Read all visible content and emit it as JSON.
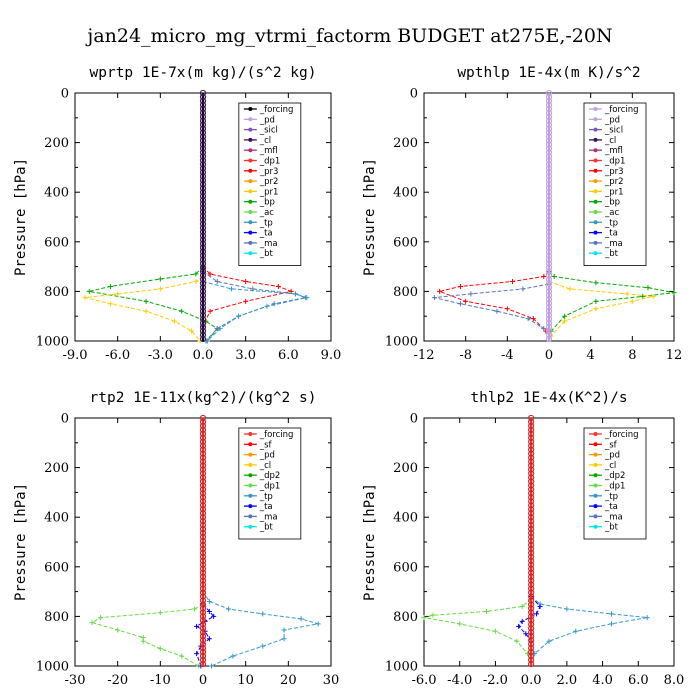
{
  "title": "jan24_micro_mg_vtrmi_factorm  BUDGET at275E,-20N",
  "chart_data": [
    {
      "type": "line",
      "title": "wprtp   1E-7x(m kg)/(s^2 kg)",
      "ylabel": "Pressure [hPa]",
      "xlim": [
        -9,
        9
      ],
      "ylim": [
        1000,
        0
      ],
      "y_inverted": true,
      "xticks": [
        "-9.0",
        "-6.0",
        "-3.0",
        "0.0",
        "3.0",
        "6.0",
        "9.0"
      ],
      "yticks": [
        "0",
        "200",
        "400",
        "600",
        "800",
        "1000"
      ],
      "legend": [
        {
          "name": "_forcing",
          "color": "#000000"
        },
        {
          "name": "_pd",
          "color": "#c0a0e0"
        },
        {
          "name": "_sicl",
          "color": "#7b52c0"
        },
        {
          "name": "_cl",
          "color": "#3a1060"
        },
        {
          "name": "_mfl",
          "color": "#b03070"
        },
        {
          "name": "_dp1",
          "color": "#ff3030"
        },
        {
          "name": "_pr3",
          "color": "#ff0000"
        },
        {
          "name": "_pr2",
          "color": "#ff9900"
        },
        {
          "name": "_pr1",
          "color": "#ffcc00"
        },
        {
          "name": "_bp",
          "color": "#00aa00"
        },
        {
          "name": "_ac",
          "color": "#66dd44"
        },
        {
          "name": "_tp",
          "color": "#3399cc"
        },
        {
          "name": "_ta",
          "color": "#0000ff"
        },
        {
          "name": "_ma",
          "color": "#5577bb"
        },
        {
          "name": "_bt",
          "color": "#00e5ee"
        }
      ],
      "series": [
        {
          "name": "_bp",
          "color": "#00aa00",
          "x": [
            0,
            -0.5,
            -3.0,
            -6.5,
            -8.0,
            -4.0,
            -1.5,
            0.2,
            1.0,
            0.3
          ],
          "y": [
            700,
            730,
            750,
            780,
            800,
            840,
            880,
            920,
            950,
            1000
          ]
        },
        {
          "name": "_pr1",
          "color": "#ffcc00",
          "x": [
            0,
            -0.5,
            -3.0,
            -6.0,
            -8.3,
            -6.5,
            -4.0,
            -2.0,
            -0.8,
            -0.2
          ],
          "y": [
            740,
            760,
            790,
            810,
            825,
            850,
            880,
            920,
            960,
            1000
          ]
        },
        {
          "name": "_pr3",
          "color": "#ff0000",
          "x": [
            0,
            0.5,
            3.0,
            5.3,
            6.2,
            3.0,
            0.5,
            0
          ],
          "y": [
            700,
            730,
            760,
            780,
            800,
            840,
            880,
            940
          ]
        },
        {
          "name": "_ma",
          "color": "#5577bb",
          "x": [
            0,
            1.0,
            3.5,
            6.5,
            7.2,
            5.0,
            2.5,
            1.0,
            0.2
          ],
          "y": [
            720,
            760,
            790,
            810,
            825,
            850,
            900,
            950,
            1000
          ]
        },
        {
          "name": "_tp",
          "color": "#3399cc",
          "x": [
            0,
            2.0,
            6.5,
            7.3,
            4.5,
            2.5,
            1.2,
            0.3
          ],
          "y": [
            760,
            790,
            810,
            825,
            860,
            900,
            950,
            1000
          ]
        },
        {
          "name": "_forcing",
          "color": "#000000",
          "x": [
            0,
            0,
            0
          ],
          "y": [
            0,
            500,
            1000
          ]
        }
      ]
    },
    {
      "type": "line",
      "title": "wpthlp   1E-4x(m K)/s^2",
      "ylabel": "Pressure [hPa]",
      "xlim": [
        -12,
        12
      ],
      "ylim": [
        1000,
        0
      ],
      "y_inverted": true,
      "xticks": [
        "-12",
        "-8",
        "-4",
        "0",
        "4",
        "8",
        "12"
      ],
      "yticks": [
        "0",
        "200",
        "400",
        "600",
        "800",
        "1000"
      ],
      "legend": [
        {
          "name": "_forcing",
          "color": "#c0a0e0"
        },
        {
          "name": "_pd",
          "color": "#c0a0e0"
        },
        {
          "name": "_sicl",
          "color": "#7b52c0"
        },
        {
          "name": "_cl",
          "color": "#3a1060"
        },
        {
          "name": "_mfl",
          "color": "#b03070"
        },
        {
          "name": "_dp1",
          "color": "#ff3030"
        },
        {
          "name": "_pr3",
          "color": "#ff0000"
        },
        {
          "name": "_pr2",
          "color": "#ff9900"
        },
        {
          "name": "_pr1",
          "color": "#ffcc00"
        },
        {
          "name": "_bp",
          "color": "#00aa00"
        },
        {
          "name": "_ac",
          "color": "#66dd44"
        },
        {
          "name": "_tp",
          "color": "#3399cc"
        },
        {
          "name": "_ta",
          "color": "#0000ff"
        },
        {
          "name": "_ma",
          "color": "#5577bb"
        },
        {
          "name": "_bt",
          "color": "#00e5ee"
        }
      ],
      "series": [
        {
          "name": "_pr3",
          "color": "#ff0000",
          "x": [
            0,
            -0.5,
            -3.5,
            -8.5,
            -10.5,
            -8.0,
            -4.0,
            -1.5,
            -0.3
          ],
          "y": [
            720,
            740,
            760,
            780,
            800,
            840,
            870,
            910,
            960
          ]
        },
        {
          "name": "_ma",
          "color": "#5577bb",
          "x": [
            0,
            -2.5,
            -7.5,
            -11.0,
            -8.5,
            -5.0,
            -2.0,
            -0.5
          ],
          "y": [
            770,
            790,
            810,
            825,
            850,
            880,
            910,
            950
          ]
        },
        {
          "name": "_bp",
          "color": "#00aa00",
          "x": [
            0,
            0.5,
            4.5,
            9.5,
            12.0,
            9.0,
            4.5,
            1.5,
            0.2
          ],
          "y": [
            720,
            740,
            765,
            785,
            805,
            820,
            840,
            900,
            960
          ]
        },
        {
          "name": "_pr1",
          "color": "#ffcc00",
          "x": [
            0,
            2.0,
            7.5,
            10.0,
            8.0,
            4.5,
            1.5,
            0.2
          ],
          "y": [
            760,
            790,
            810,
            820,
            840,
            870,
            920,
            980
          ]
        },
        {
          "name": "_forcing",
          "color": "#c0a0e0",
          "x": [
            0,
            0,
            0
          ],
          "y": [
            0,
            500,
            1000
          ]
        }
      ]
    },
    {
      "type": "line",
      "title": "rtp2   1E-11x(kg^2)/(kg^2 s)",
      "ylabel": "Pressure [hPa]",
      "xlim": [
        -30,
        30
      ],
      "ylim": [
        1000,
        0
      ],
      "y_inverted": true,
      "xticks": [
        "-30",
        "-20",
        "-10",
        "0",
        "10",
        "20",
        "30"
      ],
      "yticks": [
        "0",
        "200",
        "400",
        "600",
        "800",
        "1000"
      ],
      "legend": [
        {
          "name": "_forcing",
          "color": "#ff3030"
        },
        {
          "name": "_sf",
          "color": "#ff0000"
        },
        {
          "name": "_pd",
          "color": "#ff9900"
        },
        {
          "name": "_cl",
          "color": "#ffcc00"
        },
        {
          "name": "_dp2",
          "color": "#00aa00"
        },
        {
          "name": "_dp1",
          "color": "#66dd44"
        },
        {
          "name": "_tp",
          "color": "#3399cc"
        },
        {
          "name": "_ta",
          "color": "#0000ff"
        },
        {
          "name": "_ma",
          "color": "#5577bb"
        },
        {
          "name": "_bt",
          "color": "#00e5ee"
        }
      ],
      "series": [
        {
          "name": "_dp1",
          "color": "#66dd44",
          "x": [
            0,
            -2.0,
            -10.0,
            -24.0,
            -26.0,
            -20.0,
            -14.0,
            -14.0,
            -10.0,
            -5.0,
            -1.0
          ],
          "y": [
            750,
            770,
            785,
            805,
            825,
            855,
            885,
            900,
            930,
            960,
            1000
          ]
        },
        {
          "name": "_tp",
          "color": "#3399cc",
          "x": [
            0,
            1.5,
            6.0,
            14.0,
            23.0,
            27.0,
            19.0,
            19.0,
            14.0,
            7.0,
            2.0
          ],
          "y": [
            700,
            740,
            770,
            790,
            810,
            830,
            855,
            890,
            920,
            960,
            1000
          ]
        },
        {
          "name": "_ta",
          "color": "#0000ff",
          "x": [
            0,
            1.5,
            2.5,
            0.5,
            -1.5,
            0.5,
            1.5,
            -0.5,
            -1.5,
            -0.5
          ],
          "y": [
            750,
            780,
            800,
            820,
            840,
            860,
            890,
            920,
            950,
            1000
          ]
        },
        {
          "name": "_forcing",
          "color": "#ff3030",
          "x": [
            0,
            0,
            0
          ],
          "y": [
            0,
            500,
            1000
          ]
        }
      ]
    },
    {
      "type": "line",
      "title": "thlp2   1E-4x(K^2)/s",
      "ylabel": "Pressure [hPa]",
      "xlim": [
        -6,
        8
      ],
      "ylim": [
        1000,
        0
      ],
      "y_inverted": true,
      "xticks": [
        "-6.0",
        "-4.0",
        "-2.0",
        "0.0",
        "2.0",
        "4.0",
        "6.0",
        "8.0"
      ],
      "yticks": [
        "0",
        "200",
        "400",
        "600",
        "800",
        "1000"
      ],
      "legend": [
        {
          "name": "_forcing",
          "color": "#ff3030"
        },
        {
          "name": "_sf",
          "color": "#ff0000"
        },
        {
          "name": "_pd",
          "color": "#ff9900"
        },
        {
          "name": "_cl",
          "color": "#ffcc00"
        },
        {
          "name": "_dp2",
          "color": "#00aa00"
        },
        {
          "name": "_dp1",
          "color": "#66dd44"
        },
        {
          "name": "_tp",
          "color": "#3399cc"
        },
        {
          "name": "_ta",
          "color": "#0000ff"
        },
        {
          "name": "_ma",
          "color": "#5577bb"
        },
        {
          "name": "_bt",
          "color": "#00e5ee"
        }
      ],
      "series": [
        {
          "name": "_dp1",
          "color": "#66dd44",
          "x": [
            0,
            -0.5,
            -2.5,
            -5.5,
            -6.0,
            -4.0,
            -2.0,
            -0.8,
            -0.2
          ],
          "y": [
            730,
            760,
            780,
            795,
            805,
            830,
            860,
            900,
            950
          ]
        },
        {
          "name": "_tp",
          "color": "#3399cc",
          "x": [
            0,
            0.5,
            2.0,
            4.5,
            6.5,
            4.5,
            2.5,
            1.0,
            0.2
          ],
          "y": [
            720,
            750,
            770,
            790,
            805,
            830,
            860,
            900,
            950
          ]
        },
        {
          "name": "_ta",
          "color": "#0000ff",
          "x": [
            0,
            0.5,
            0.3,
            -0.5,
            -0.7,
            -0.3,
            0
          ],
          "y": [
            720,
            760,
            790,
            820,
            840,
            870,
            900
          ]
        },
        {
          "name": "_forcing",
          "color": "#ff3030",
          "x": [
            0,
            0,
            0
          ],
          "y": [
            0,
            500,
            1000
          ]
        }
      ]
    }
  ]
}
